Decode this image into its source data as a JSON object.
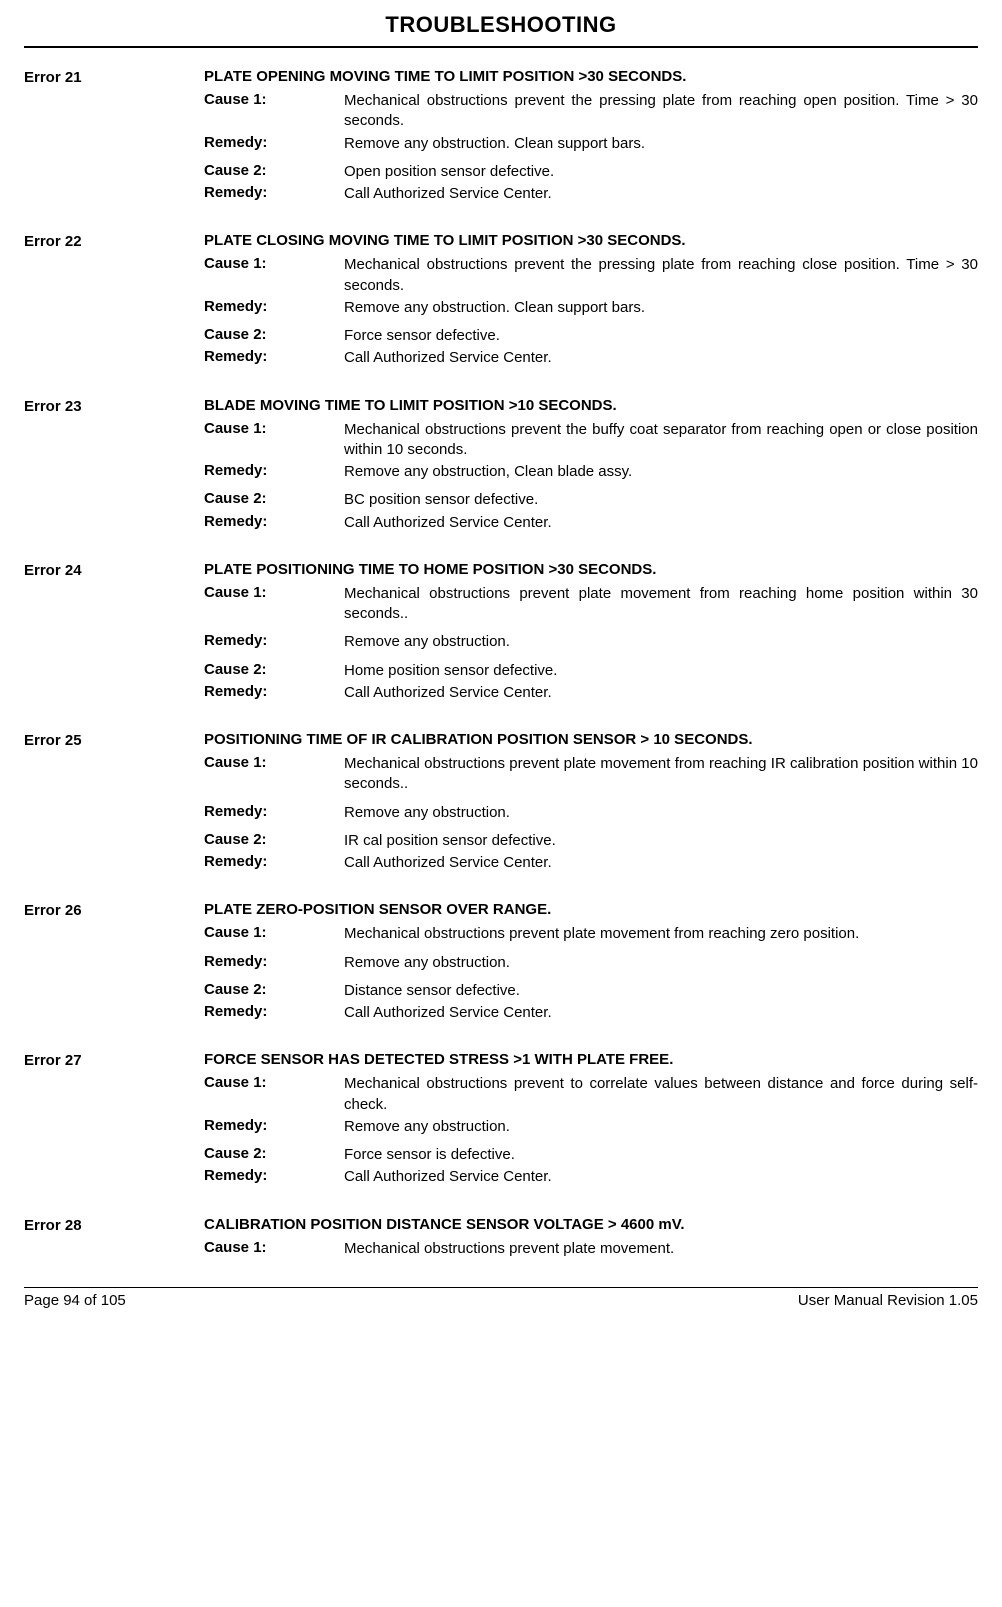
{
  "title": "TROUBLESHOOTING",
  "errors": [
    {
      "code": "Error 21",
      "heading": "PLATE OPENING MOVING TIME TO LIMIT POSITION >30 SECONDS.",
      "items": [
        {
          "label": "Cause 1:",
          "text": "Mechanical obstructions prevent the pressing plate from reaching open position. Time > 30 seconds.",
          "gap": false
        },
        {
          "label": "Remedy:",
          "text": "Remove any obstruction. Clean support bars.",
          "gap": false
        },
        {
          "label": "Cause 2:",
          "text": "Open position sensor defective.",
          "gap": true
        },
        {
          "label": "Remedy:",
          "text": "Call Authorized Service Center.",
          "gap": false
        }
      ]
    },
    {
      "code": "Error 22",
      "heading": "PLATE CLOSING MOVING TIME TO LIMIT POSITION >30 SECONDS.",
      "items": [
        {
          "label": "Cause 1:",
          "text": "Mechanical obstructions prevent the pressing plate from reaching close position. Time > 30 seconds.",
          "gap": false
        },
        {
          "label": "Remedy:",
          "text": "Remove any obstruction. Clean support bars.",
          "gap": false
        },
        {
          "label": "Cause 2:",
          "text": "Force sensor defective.",
          "gap": true
        },
        {
          "label": "Remedy:",
          "text": "Call Authorized Service Center.",
          "gap": false
        }
      ]
    },
    {
      "code": "Error 23",
      "heading": "BLADE MOVING TIME TO LIMIT POSITION >10 SECONDS.",
      "items": [
        {
          "label": "Cause 1:",
          "text": "Mechanical obstructions prevent the buffy coat separator from reaching open or close position within 10 seconds.",
          "gap": false
        },
        {
          "label": "Remedy:",
          "text": "Remove any obstruction, Clean blade assy.",
          "gap": false
        },
        {
          "label": "Cause 2:",
          "text": "BC position sensor defective.",
          "gap": true
        },
        {
          "label": "Remedy:",
          "text": "Call Authorized Service Center.",
          "gap": false
        }
      ]
    },
    {
      "code": "Error 24",
      "heading": "PLATE POSITIONING TIME TO HOME POSITION >30 SECONDS.",
      "items": [
        {
          "label": "Cause 1:",
          "text": "Mechanical obstructions prevent plate movement from reaching home position within 30 seconds..",
          "gap": false
        },
        {
          "label": "Remedy:",
          "text": "Remove any obstruction.",
          "gap": true
        },
        {
          "label": "Cause 2:",
          "text": "Home position sensor defective.",
          "gap": true
        },
        {
          "label": "Remedy:",
          "text": "Call Authorized Service Center.",
          "gap": false
        }
      ]
    },
    {
      "code": "Error 25",
      "heading": "POSITIONING TIME OF IR CALIBRATION POSITION SENSOR > 10 SECONDS.",
      "items": [
        {
          "label": "Cause 1:",
          "text": "Mechanical obstructions prevent plate movement from reaching IR calibration position within 10 seconds..",
          "gap": false
        },
        {
          "label": "Remedy:",
          "text": "Remove any obstruction.",
          "gap": true
        },
        {
          "label": "Cause 2:",
          "text": "IR cal position sensor defective.",
          "gap": true
        },
        {
          "label": "Remedy:",
          "text": "Call Authorized Service Center.",
          "gap": false
        }
      ]
    },
    {
      "code": "Error 26",
      "heading": "PLATE ZERO-POSITION SENSOR OVER RANGE.",
      "items": [
        {
          "label": "Cause 1:",
          "text": "Mechanical obstructions prevent plate movement from reaching zero position.",
          "gap": false
        },
        {
          "label": "Remedy:",
          "text": "Remove any obstruction.",
          "gap": true
        },
        {
          "label": "Cause 2:",
          "text": "Distance sensor defective.",
          "gap": true
        },
        {
          "label": "Remedy:",
          "text": "Call Authorized Service Center.",
          "gap": false
        }
      ]
    },
    {
      "code": "Error 27",
      "heading": "FORCE SENSOR HAS DETECTED STRESS >1 WITH PLATE FREE.",
      "items": [
        {
          "label": "Cause 1:",
          "text": "Mechanical obstructions prevent to correlate values between distance and force during self-check.",
          "gap": false
        },
        {
          "label": "Remedy:",
          "text": "Remove any obstruction.",
          "gap": false
        },
        {
          "label": "Cause 2:",
          "text": "Force sensor is defective.",
          "gap": true
        },
        {
          "label": "Remedy:",
          "text": "Call Authorized Service Center.",
          "gap": false
        }
      ]
    },
    {
      "code": "Error 28",
      "heading": "CALIBRATION POSITION DISTANCE SENSOR VOLTAGE > 4600 mV.",
      "items": [
        {
          "label": "Cause 1:",
          "text": "Mechanical obstructions prevent plate movement.",
          "gap": false
        }
      ]
    }
  ],
  "footer": {
    "left": "Page 94 of 105",
    "right": "User Manual Revision 1.05"
  }
}
